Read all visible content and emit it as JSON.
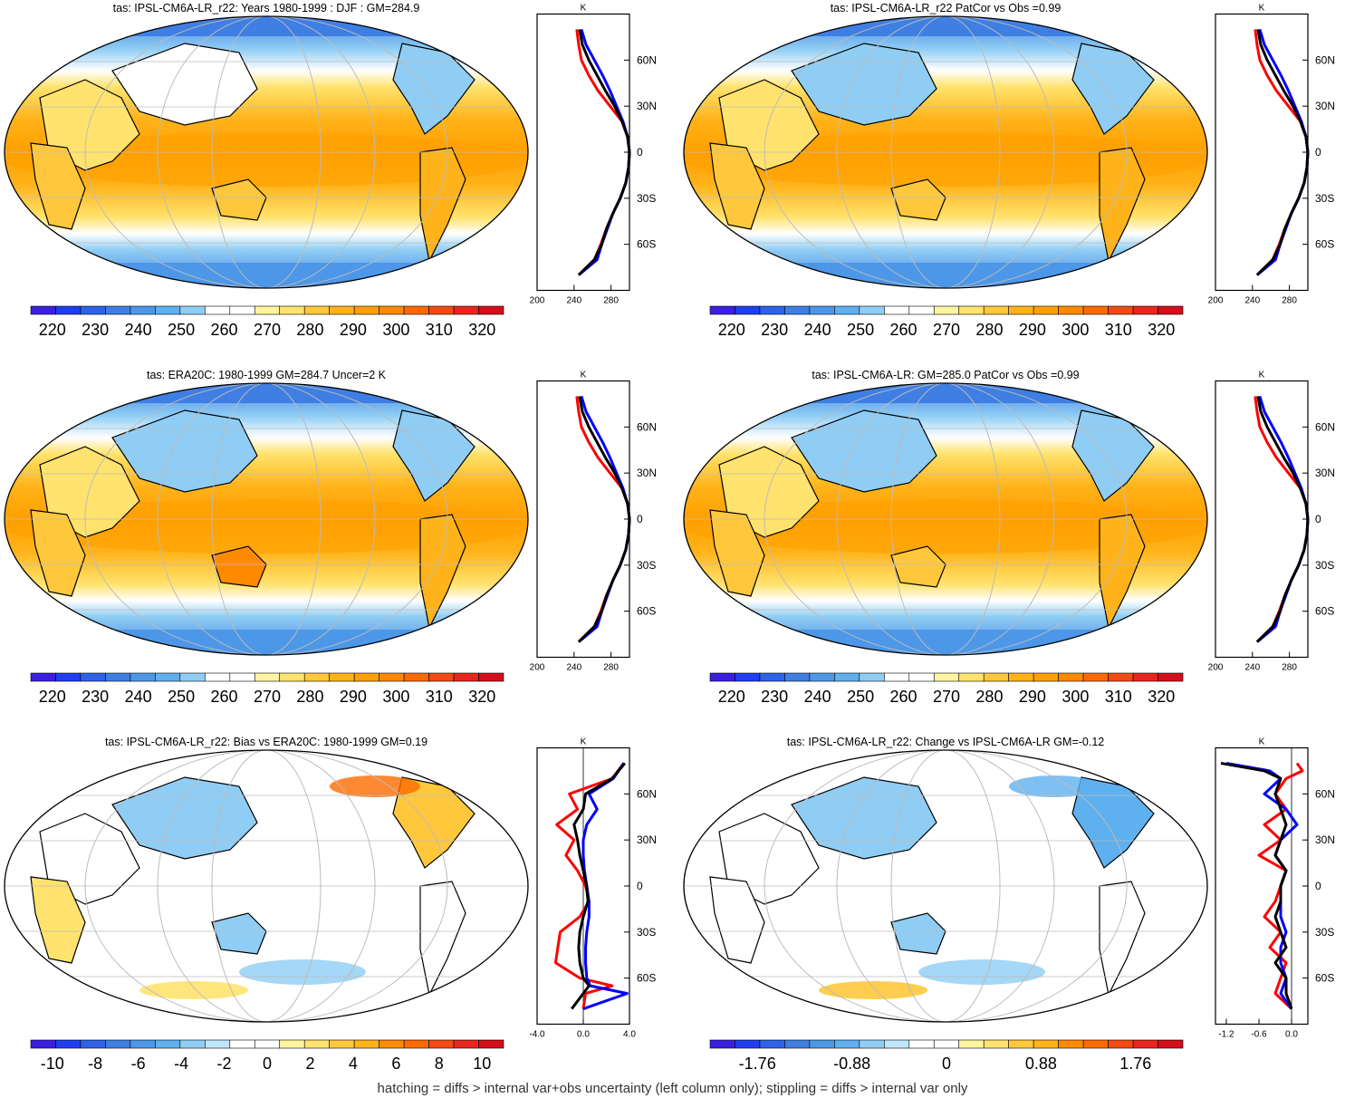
{
  "footer": "hatching = diffs > internal var+obs uncertainty (left column only); stippling = diffs > internal var only",
  "lat_ticks": [
    "60N",
    "30N",
    "0",
    "30S",
    "60S"
  ],
  "lat_values": [
    60,
    30,
    0,
    -30,
    -60
  ],
  "profile_unit": "K",
  "abs_colors": [
    "#3a1fe0",
    "#1f3ef0",
    "#2e62e8",
    "#3f7fe3",
    "#4d97e8",
    "#5fb0ef",
    "#8fcdf4",
    "#ffffff",
    "#ffffff",
    "#fff5a0",
    "#ffe36e",
    "#ffc83c",
    "#ffb31a",
    "#ffa000",
    "#ff8a00",
    "#ff6a00",
    "#f44a14",
    "#e8261e",
    "#d40e1a"
  ],
  "diff_colors": [
    "#3a1fe0",
    "#1f3ef0",
    "#2e62e8",
    "#3f7fe3",
    "#4d97e8",
    "#5fb0ef",
    "#8fcdf4",
    "#bfe6fa",
    "#ffffff",
    "#ffffff",
    "#fff5a0",
    "#ffe36e",
    "#ffc83c",
    "#ffb31a",
    "#ff8a00",
    "#ff6a00",
    "#f44a14",
    "#e8261e",
    "#d40e1a"
  ],
  "line_colors": {
    "model": "#ff0000",
    "obs": "#0000ff",
    "ensemble": "#000000"
  },
  "chart_data": [
    {
      "type": "heatmap",
      "title": "tas: IPSL-CM6A-LR_r22: Years 1980-1999 : DJF : GM=284.9",
      "colorbar_labels": [
        "220",
        "230",
        "240",
        "250",
        "260",
        "270",
        "280",
        "290",
        "300",
        "310",
        "320"
      ],
      "profile_xticks": [
        "200",
        "240",
        "280"
      ],
      "profile_xrange": [
        200,
        300
      ],
      "profile": {
        "lat": [
          80,
          70,
          60,
          50,
          40,
          30,
          20,
          10,
          0,
          -10,
          -20,
          -30,
          -40,
          -50,
          -60,
          -70,
          -80
        ],
        "model": [
          243,
          245,
          248,
          256,
          266,
          279,
          292,
          298,
          300,
          299,
          296,
          290,
          282,
          275,
          269,
          262,
          245
        ],
        "obs": [
          248,
          253,
          262,
          271,
          279,
          286,
          293,
          298,
          300,
          299,
          296,
          290,
          282,
          276,
          270,
          265,
          245
        ],
        "ensemble": [
          246,
          249,
          256,
          265,
          274,
          284,
          292,
          298,
          300,
          299,
          296,
          290,
          282,
          275,
          270,
          262,
          245
        ]
      }
    },
    {
      "type": "heatmap",
      "title": "tas: IPSL-CM6A-LR_r22 PatCor vs Obs =0.99",
      "colorbar_labels": [
        "220",
        "230",
        "240",
        "250",
        "260",
        "270",
        "280",
        "290",
        "300",
        "310",
        "320"
      ],
      "profile_xticks": [
        "200",
        "240",
        "280"
      ],
      "profile_xrange": [
        200,
        300
      ],
      "profile": {
        "lat": [
          80,
          70,
          60,
          50,
          40,
          30,
          20,
          10,
          0,
          -10,
          -20,
          -30,
          -40,
          -50,
          -60,
          -70,
          -80
        ],
        "model": [
          243,
          245,
          248,
          256,
          266,
          279,
          292,
          298,
          300,
          299,
          296,
          290,
          282,
          275,
          269,
          262,
          245
        ],
        "obs": [
          248,
          253,
          262,
          271,
          279,
          286,
          293,
          298,
          300,
          299,
          296,
          290,
          282,
          276,
          270,
          265,
          245
        ],
        "ensemble": [
          246,
          249,
          256,
          265,
          274,
          284,
          292,
          298,
          300,
          299,
          296,
          290,
          282,
          275,
          270,
          262,
          245
        ]
      }
    },
    {
      "type": "heatmap",
      "title": "tas: ERA20C: 1980-1999 GM=284.7 Uncer=2 K",
      "colorbar_labels": [
        "220",
        "230",
        "240",
        "250",
        "260",
        "270",
        "280",
        "290",
        "300",
        "310",
        "320"
      ],
      "profile_xticks": [
        "200",
        "240",
        "280"
      ],
      "profile_xrange": [
        200,
        300
      ],
      "profile": {
        "lat": [
          80,
          70,
          60,
          50,
          40,
          30,
          20,
          10,
          0,
          -10,
          -20,
          -30,
          -40,
          -50,
          -60,
          -70,
          -80
        ],
        "model": [
          243,
          245,
          248,
          256,
          266,
          279,
          292,
          298,
          300,
          299,
          296,
          290,
          282,
          275,
          269,
          262,
          245
        ],
        "obs": [
          248,
          253,
          262,
          271,
          279,
          286,
          293,
          298,
          300,
          299,
          296,
          290,
          282,
          276,
          270,
          265,
          245
        ],
        "ensemble": [
          246,
          249,
          256,
          265,
          274,
          284,
          292,
          298,
          300,
          299,
          296,
          290,
          282,
          275,
          270,
          262,
          245
        ]
      }
    },
    {
      "type": "heatmap",
      "title": "tas: IPSL-CM6A-LR: GM=285.0 PatCor vs Obs =0.99",
      "colorbar_labels": [
        "220",
        "230",
        "240",
        "250",
        "260",
        "270",
        "280",
        "290",
        "300",
        "310",
        "320"
      ],
      "profile_xticks": [
        "200",
        "240",
        "280"
      ],
      "profile_xrange": [
        200,
        300
      ],
      "profile": {
        "lat": [
          80,
          70,
          60,
          50,
          40,
          30,
          20,
          10,
          0,
          -10,
          -20,
          -30,
          -40,
          -50,
          -60,
          -70,
          -80
        ],
        "model": [
          243,
          245,
          248,
          256,
          266,
          279,
          292,
          298,
          300,
          299,
          296,
          290,
          282,
          275,
          269,
          262,
          245
        ],
        "obs": [
          248,
          253,
          262,
          271,
          279,
          286,
          293,
          298,
          300,
          299,
          296,
          290,
          282,
          276,
          270,
          265,
          245
        ],
        "ensemble": [
          246,
          249,
          256,
          265,
          274,
          284,
          292,
          298,
          300,
          299,
          296,
          290,
          282,
          275,
          270,
          262,
          245
        ]
      }
    },
    {
      "type": "heatmap",
      "title": "tas: IPSL-CM6A-LR_r22: Bias vs ERA20C: 1980-1999 GM=0.19",
      "colorbar_labels": [
        "-10",
        "-8",
        "-6",
        "-4",
        "-2",
        "0",
        "2",
        "4",
        "6",
        "8",
        "10"
      ],
      "profile_xticks": [
        "-4.0",
        "0.0",
        "4.0"
      ],
      "profile_xrange": [
        -4,
        4
      ],
      "profile": {
        "lat": [
          80,
          70,
          60,
          50,
          40,
          30,
          20,
          10,
          0,
          -10,
          -20,
          -30,
          -40,
          -50,
          -60,
          -65,
          -70,
          -80
        ],
        "model": [
          3.5,
          2.5,
          -1.2,
          -0.5,
          -2.3,
          -0.8,
          -1.5,
          -0.5,
          0.2,
          0.5,
          -0.3,
          -2.0,
          -2.2,
          -2.4,
          -0.3,
          2.5,
          0.2,
          0.0
        ],
        "obs": [
          3.5,
          2.6,
          0.5,
          1.2,
          0.3,
          0.0,
          0.0,
          0.1,
          0.3,
          0.5,
          0.5,
          0.3,
          0.2,
          0.2,
          0.3,
          0.6,
          3.8,
          0.0
        ],
        "ensemble": [
          3.6,
          2.5,
          0.2,
          0.0,
          -0.8,
          -0.5,
          -0.3,
          0.0,
          0.3,
          0.4,
          0.0,
          -0.3,
          -0.4,
          -0.3,
          0.0,
          0.5,
          0.0,
          -1.0
        ]
      }
    },
    {
      "type": "heatmap",
      "title": "tas: IPSL-CM6A-LR_r22: Change vs IPSL-CM6A-LR GM=-0.12",
      "colorbar_labels": [
        "-1.76",
        "-0.88",
        "0",
        "0.88",
        "1.76"
      ],
      "profile_xticks": [
        "-1.2",
        "-0.6",
        "0.0"
      ],
      "profile_xrange": [
        -1.4,
        0.3
      ],
      "profile": {
        "lat": [
          80,
          75,
          70,
          60,
          50,
          40,
          30,
          20,
          10,
          0,
          -10,
          -20,
          -30,
          -40,
          -50,
          -60,
          -70,
          -80
        ],
        "model": [
          0.1,
          0.2,
          -0.1,
          -0.3,
          -0.1,
          -0.5,
          -0.2,
          -0.6,
          -0.1,
          -0.2,
          -0.3,
          -0.5,
          -0.2,
          -0.4,
          -0.1,
          -0.2,
          -0.3,
          0.0
        ],
        "obs": [
          -1.2,
          -0.4,
          -0.2,
          -0.5,
          -0.1,
          0.1,
          -0.2,
          -0.3,
          -0.1,
          -0.2,
          -0.2,
          -0.2,
          -0.1,
          -0.2,
          -0.2,
          -0.1,
          -0.2,
          0.0
        ],
        "ensemble": [
          -1.3,
          -0.5,
          -0.2,
          -0.3,
          -0.2,
          -0.1,
          -0.2,
          -0.3,
          -0.1,
          -0.2,
          -0.2,
          -0.3,
          -0.2,
          -0.1,
          -0.3,
          -0.1,
          -0.1,
          0.0
        ]
      }
    }
  ]
}
